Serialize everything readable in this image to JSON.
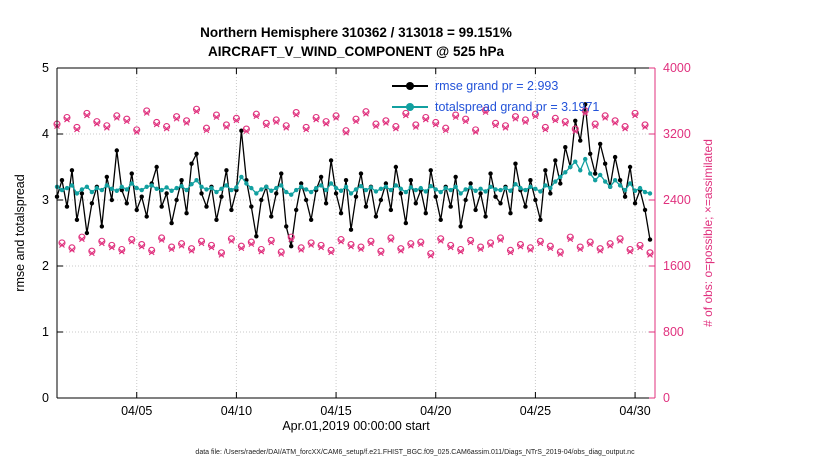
{
  "title": {
    "line1": "Northern Hemisphere 310362 / 313018 = 99.151%",
    "line2": "AIRCRAFT_V_WIND_COMPONENT @ 525 hPa"
  },
  "legend": {
    "text_color": "#2353d9",
    "entries": [
      {
        "label": "rmse grand pr = 2.993",
        "series": "rmse",
        "color": "#000000"
      },
      {
        "label": "totalspread grand pr = 3.1971",
        "series": "totalspread",
        "color": "#12a0a0"
      }
    ]
  },
  "footer": {
    "text": "data file: /Users/raeder/DAI/ATM_forcXX/CAM6_setup/f.e21.FHIST_BGC.f09_025.CAM6assim.011/Diags_NTrS_2019-04/obs_diag_output.nc"
  },
  "chart_data": {
    "type": "line",
    "title": "Northern Hemisphere 310362 / 313018 = 99.151% — AIRCRAFT_V_WIND_COMPONENT @ 525 hPa",
    "xlabel": "Apr.01,2019 00:00:00 start",
    "ylabel_left": "rmse and totalspread",
    "ylabel_right": "# of obs: o=possible; ×=assimilated",
    "xlim": [
      1,
      31
    ],
    "ylim_left": [
      0,
      5
    ],
    "ylim_right": [
      0,
      4000
    ],
    "grid": true,
    "legend_position": "top-center-inside",
    "axis_colors": {
      "left": "#000000",
      "right": "#e0317e"
    },
    "x_start_day": 1,
    "x_step_days": 0.25,
    "xticks": [
      {
        "day": 5,
        "label": "04/05"
      },
      {
        "day": 10,
        "label": "04/10"
      },
      {
        "day": 15,
        "label": "04/15"
      },
      {
        "day": 20,
        "label": "04/20"
      },
      {
        "day": 25,
        "label": "04/25"
      },
      {
        "day": 30,
        "label": "04/30"
      }
    ],
    "yticks_left": [
      0,
      1,
      2,
      3,
      4,
      5
    ],
    "yticks_right": [
      0,
      800,
      1600,
      2400,
      3200,
      4000
    ],
    "series": [
      {
        "name": "rmse",
        "axis": "left",
        "color": "#000000",
        "marker": "dot",
        "line": true,
        "grand_mean": 2.993,
        "values": [
          3.05,
          3.3,
          2.9,
          3.45,
          2.7,
          3.1,
          2.5,
          2.95,
          3.2,
          2.6,
          3.35,
          3.0,
          3.75,
          3.15,
          2.95,
          3.4,
          2.85,
          3.05,
          2.75,
          3.25,
          3.5,
          2.9,
          3.1,
          2.65,
          3.0,
          3.3,
          2.8,
          3.55,
          3.7,
          3.1,
          2.9,
          3.2,
          2.7,
          3.05,
          3.45,
          2.85,
          3.15,
          4.05,
          3.3,
          2.9,
          2.45,
          3.0,
          3.2,
          2.75,
          3.1,
          3.4,
          2.6,
          2.3,
          2.85,
          3.25,
          3.0,
          2.7,
          3.15,
          3.35,
          2.95,
          3.6,
          3.1,
          2.8,
          3.3,
          2.55,
          3.05,
          3.4,
          2.9,
          3.2,
          2.75,
          3.0,
          3.25,
          2.85,
          3.5,
          3.1,
          2.65,
          3.3,
          2.95,
          3.15,
          2.8,
          3.45,
          3.05,
          2.7,
          3.2,
          2.9,
          3.35,
          2.6,
          3.0,
          3.25,
          2.85,
          3.1,
          2.75,
          3.4,
          3.05,
          2.95,
          3.2,
          2.8,
          3.55,
          3.15,
          2.9,
          3.3,
          3.0,
          2.7,
          3.45,
          3.1,
          3.6,
          3.25,
          3.8,
          3.5,
          4.2,
          3.9,
          4.45,
          3.7,
          3.4,
          3.85,
          3.55,
          3.2,
          3.65,
          3.3,
          3.05,
          3.5,
          2.95,
          3.15,
          2.85,
          2.4
        ]
      },
      {
        "name": "totalspread",
        "axis": "left",
        "color": "#12a0a0",
        "marker": "dot",
        "line": true,
        "grand_mean": 3.1971,
        "values": [
          3.2,
          3.15,
          3.18,
          3.22,
          3.1,
          3.16,
          3.2,
          3.12,
          3.18,
          3.15,
          3.22,
          3.17,
          3.14,
          3.2,
          3.16,
          3.25,
          3.18,
          3.15,
          3.2,
          3.22,
          3.17,
          3.15,
          3.19,
          3.14,
          3.18,
          3.21,
          3.15,
          3.24,
          3.3,
          3.2,
          3.16,
          3.18,
          3.12,
          3.17,
          3.22,
          3.15,
          3.19,
          3.35,
          3.25,
          3.18,
          3.1,
          3.16,
          3.2,
          3.14,
          3.18,
          3.22,
          3.12,
          3.08,
          3.15,
          3.2,
          3.16,
          3.12,
          3.18,
          3.22,
          3.15,
          3.25,
          3.18,
          3.14,
          3.2,
          3.1,
          3.16,
          3.21,
          3.15,
          3.19,
          3.13,
          3.17,
          3.2,
          3.15,
          3.22,
          3.17,
          3.12,
          3.19,
          3.15,
          3.18,
          3.13,
          3.21,
          3.16,
          3.12,
          3.18,
          3.15,
          3.2,
          3.1,
          3.16,
          3.19,
          3.14,
          3.17,
          3.13,
          3.2,
          3.16,
          3.15,
          3.18,
          3.14,
          3.24,
          3.18,
          3.15,
          3.2,
          3.17,
          3.13,
          3.22,
          3.18,
          3.28,
          3.35,
          3.42,
          3.5,
          3.58,
          3.45,
          3.62,
          3.4,
          3.3,
          3.38,
          3.28,
          3.2,
          3.3,
          3.22,
          3.15,
          3.25,
          3.14,
          3.18,
          3.12,
          3.1
        ]
      },
      {
        "name": "possible_obs",
        "axis": "right",
        "color": "#e0317e",
        "marker": "circle",
        "line": false,
        "total": 313018,
        "values": [
          3320,
          1880,
          3400,
          1820,
          3280,
          1950,
          3450,
          1780,
          3350,
          1900,
          3300,
          1850,
          3420,
          1800,
          3380,
          1920,
          3250,
          1860,
          3480,
          1790,
          3340,
          1940,
          3290,
          1830,
          3410,
          1870,
          3360,
          1810,
          3500,
          1900,
          3270,
          1850,
          3430,
          1760,
          3310,
          1930,
          3390,
          1840,
          3260,
          1890,
          3440,
          1800,
          3330,
          1910,
          3370,
          1770,
          3300,
          1950,
          3460,
          1820,
          3280,
          1880,
          3400,
          1850,
          3350,
          1790,
          3420,
          1920,
          3240,
          1860,
          3380,
          1830,
          3470,
          1900,
          3320,
          1780,
          3360,
          1940,
          3290,
          1810,
          3450,
          1870,
          3310,
          1890,
          3400,
          1750,
          3340,
          1930,
          3270,
          1850,
          3430,
          1800,
          3380,
          1910,
          3250,
          1830,
          3490,
          1880,
          3330,
          1940,
          3300,
          1790,
          3410,
          1860,
          3370,
          1820,
          3440,
          1900,
          3280,
          1840,
          3390,
          1770,
          3350,
          1950,
          3260,
          1830,
          3480,
          1890,
          3320,
          1810,
          3420,
          1870,
          3360,
          1930,
          3290,
          1800,
          3450,
          1850,
          3310,
          1760
        ]
      },
      {
        "name": "assimilated_obs",
        "axis": "right",
        "color": "#e0317e",
        "marker": "x",
        "line": false,
        "total": 310362,
        "values": [
          3295,
          1855,
          3375,
          1795,
          3255,
          1925,
          3425,
          1755,
          3325,
          1875,
          3275,
          1825,
          3395,
          1775,
          3355,
          1895,
          3225,
          1835,
          3455,
          1765,
          3315,
          1915,
          3265,
          1805,
          3385,
          1845,
          3335,
          1785,
          3475,
          1875,
          3245,
          1825,
          3405,
          1735,
          3285,
          1905,
          3365,
          1815,
          3235,
          1865,
          3415,
          1775,
          3305,
          1885,
          3345,
          1745,
          3275,
          1925,
          3435,
          1795,
          3255,
          1855,
          3375,
          1825,
          3325,
          1765,
          3395,
          1895,
          3215,
          1835,
          3355,
          1805,
          3445,
          1875,
          3295,
          1755,
          3335,
          1915,
          3265,
          1785,
          3425,
          1845,
          3285,
          1865,
          3375,
          1725,
          3315,
          1905,
          3245,
          1825,
          3405,
          1775,
          3355,
          1885,
          3225,
          1805,
          3465,
          1855,
          3305,
          1915,
          3275,
          1765,
          3385,
          1835,
          3345,
          1795,
          3415,
          1875,
          3255,
          1815,
          3365,
          1745,
          3325,
          1925,
          3235,
          1805,
          3455,
          1865,
          3295,
          1785,
          3395,
          1845,
          3335,
          1905,
          3265,
          1775,
          3425,
          1825,
          3285,
          1735
        ]
      }
    ]
  }
}
